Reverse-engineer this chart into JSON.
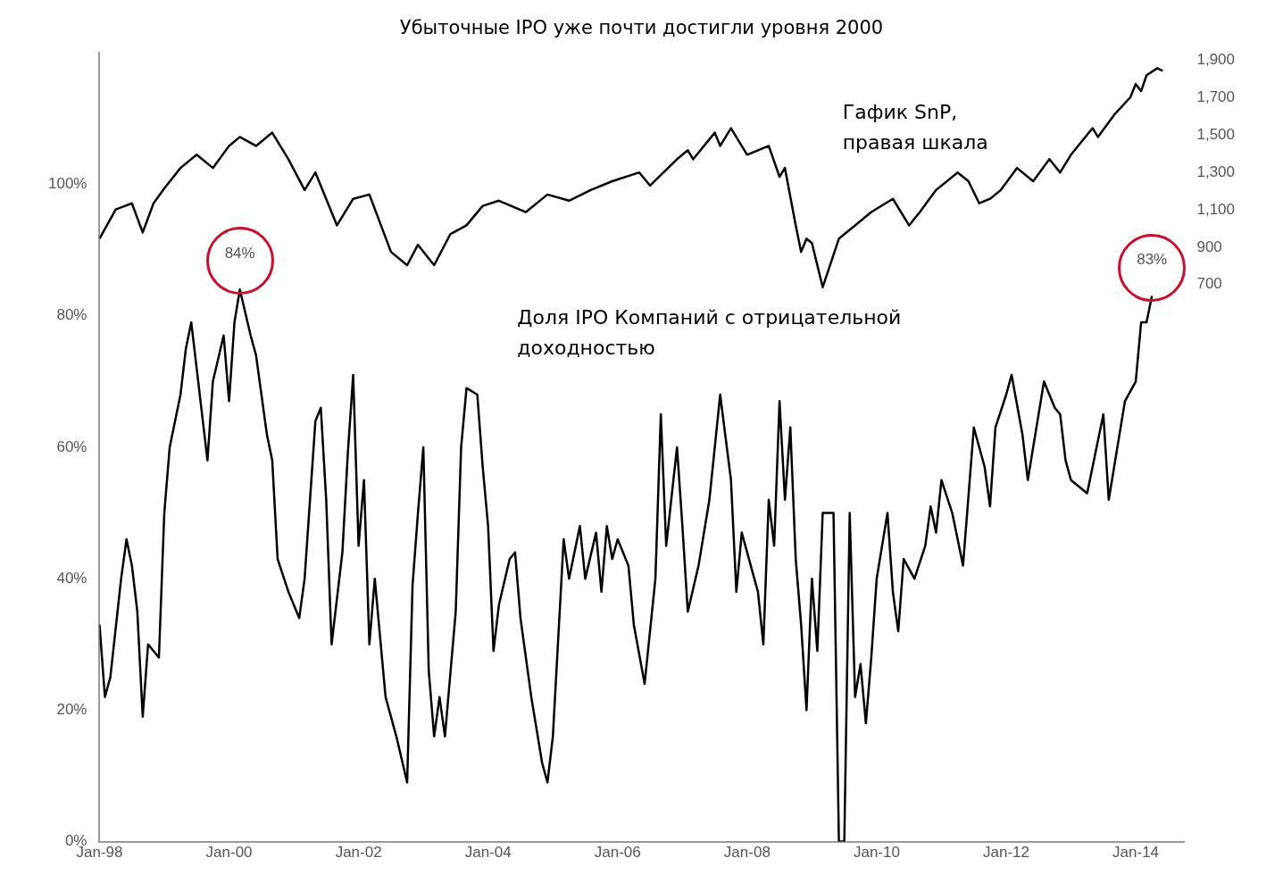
{
  "chart_data": {
    "type": "line",
    "title": "Убыточные IPO уже почти достигли уровня 2000",
    "xlim": [
      "1998-01",
      "2014-10"
    ],
    "xticks": [
      {
        "value": "1998-01",
        "label": "Jan-98"
      },
      {
        "value": "2000-01",
        "label": "Jan-00"
      },
      {
        "value": "2002-01",
        "label": "Jan-02"
      },
      {
        "value": "2004-01",
        "label": "Jan-04"
      },
      {
        "value": "2006-01",
        "label": "Jan-06"
      },
      {
        "value": "2008-01",
        "label": "Jan-08"
      },
      {
        "value": "2010-01",
        "label": "Jan-10"
      },
      {
        "value": "2012-01",
        "label": "Jan-12"
      },
      {
        "value": "2014-01",
        "label": "Jan-14"
      }
    ],
    "ylim": [
      0,
      120
    ],
    "yticks": [
      {
        "value": 0,
        "label": "0%"
      },
      {
        "value": 20,
        "label": "20%"
      },
      {
        "value": 40,
        "label": "40%"
      },
      {
        "value": 60,
        "label": "60%"
      },
      {
        "value": 80,
        "label": "80%"
      },
      {
        "value": 100,
        "label": "100%"
      }
    ],
    "y2lim": [
      -2280,
      1940
    ],
    "y2ticks": [
      {
        "value": 700,
        "label": "700"
      },
      {
        "value": 900,
        "label": "900"
      },
      {
        "value": 1100,
        "label": "1,100"
      },
      {
        "value": 1300,
        "label": "1,300"
      },
      {
        "value": 1500,
        "label": "1,500"
      },
      {
        "value": 1700,
        "label": "1,700"
      },
      {
        "value": 1900,
        "label": "1,900"
      }
    ],
    "grid": false,
    "marker": "none",
    "line_style": "solid",
    "series": [
      {
        "name": "Доля IPO Компаний с отрицательной доходностью",
        "color": "#000000",
        "x": [
          "1998-01",
          "1998-02",
          "1998-03",
          "1998-05",
          "1998-06",
          "1998-07",
          "1998-08",
          "1998-09",
          "1998-10",
          "1998-12",
          "1999-01",
          "1999-02",
          "1999-04",
          "1999-05",
          "1999-06",
          "1999-07",
          "1999-09",
          "1999-10",
          "1999-12",
          "2000-01",
          "2000-02",
          "2000-03",
          "2000-05",
          "2000-06",
          "2000-08",
          "2000-09",
          "2000-10",
          "2000-12",
          "2001-02",
          "2001-03",
          "2001-05",
          "2001-06",
          "2001-07",
          "2001-08",
          "2001-10",
          "2001-11",
          "2001-12",
          "2002-01",
          "2002-02",
          "2002-03",
          "2002-04",
          "2002-06",
          "2002-08",
          "2002-10",
          "2002-11",
          "2002-12",
          "2003-01",
          "2003-02",
          "2003-03",
          "2003-04",
          "2003-05",
          "2003-07",
          "2003-08",
          "2003-09",
          "2003-11",
          "2003-12",
          "2004-01",
          "2004-02",
          "2004-03",
          "2004-05",
          "2004-06",
          "2004-07",
          "2004-09",
          "2004-11",
          "2004-12",
          "2005-01",
          "2005-03",
          "2005-04",
          "2005-06",
          "2005-07",
          "2005-09",
          "2005-10",
          "2005-11",
          "2005-12",
          "2006-01",
          "2006-03",
          "2006-04",
          "2006-06",
          "2006-08",
          "2006-09",
          "2006-10",
          "2006-12",
          "2007-01",
          "2007-02",
          "2007-04",
          "2007-06",
          "2007-08",
          "2007-10",
          "2007-11",
          "2007-12",
          "2008-03",
          "2008-04",
          "2008-05",
          "2008-06",
          "2008-07",
          "2008-08",
          "2008-09",
          "2008-10",
          "2008-11",
          "2008-12",
          "2009-01",
          "2009-02",
          "2009-03",
          "2009-05",
          "2009-06",
          "2009-07",
          "2009-08",
          "2009-09",
          "2009-10",
          "2009-11",
          "2009-12",
          "2010-01",
          "2010-03",
          "2010-04",
          "2010-05",
          "2010-06",
          "2010-08",
          "2010-10",
          "2010-11",
          "2010-12",
          "2011-01",
          "2011-03",
          "2011-05",
          "2011-07",
          "2011-09",
          "2011-10",
          "2011-11",
          "2012-01",
          "2012-02",
          "2012-04",
          "2012-05",
          "2012-08",
          "2012-10",
          "2012-11",
          "2012-12",
          "2013-01",
          "2013-04",
          "2013-05",
          "2013-07",
          "2013-08",
          "2013-09",
          "2013-11",
          "2014-01",
          "2014-02",
          "2014-03",
          "2014-04"
        ],
        "values": [
          33,
          22,
          25,
          40,
          46,
          42,
          35,
          19,
          30,
          28,
          50,
          60,
          68,
          75,
          79,
          72,
          58,
          70,
          77,
          67,
          79,
          84,
          77,
          74,
          62,
          58,
          43,
          38,
          34,
          40,
          64,
          66,
          52,
          30,
          44,
          59,
          71,
          45,
          55,
          30,
          40,
          22,
          16,
          9,
          39,
          50,
          60,
          26,
          16,
          22,
          16,
          35,
          60,
          69,
          68,
          57,
          48,
          29,
          36,
          43,
          44,
          34,
          22,
          12,
          9,
          16,
          46,
          40,
          48,
          40,
          47,
          38,
          48,
          43,
          46,
          42,
          33,
          24,
          40,
          65,
          45,
          60,
          48,
          35,
          42,
          52,
          68,
          55,
          38,
          47,
          38,
          30,
          52,
          45,
          67,
          52,
          63,
          43,
          33,
          20,
          40,
          29,
          50,
          50,
          0,
          0,
          50,
          22,
          27,
          18,
          28,
          40,
          50,
          38,
          32,
          43,
          40,
          45,
          51,
          47,
          55,
          50,
          42,
          63,
          57,
          51,
          63,
          68,
          71,
          62,
          55,
          70,
          66,
          65,
          58,
          55,
          53,
          57,
          65,
          52,
          57,
          67,
          70,
          79,
          79,
          83
        ]
      },
      {
        "name": "Гафик SnP, правая шкала",
        "color": "#000000",
        "axis": "y2",
        "x": [
          "1998-01",
          "1998-04",
          "1998-07",
          "1998-09",
          "1998-11",
          "1999-01",
          "1999-04",
          "1999-07",
          "1999-10",
          "2000-01",
          "2000-03",
          "2000-06",
          "2000-09",
          "2000-12",
          "2001-03",
          "2001-05",
          "2001-09",
          "2001-12",
          "2002-03",
          "2002-07",
          "2002-10",
          "2002-12",
          "2003-03",
          "2003-06",
          "2003-09",
          "2003-12",
          "2004-03",
          "2004-08",
          "2004-12",
          "2005-04",
          "2005-08",
          "2005-12",
          "2006-05",
          "2006-07",
          "2006-12",
          "2007-02",
          "2007-03",
          "2007-07",
          "2007-08",
          "2007-10",
          "2008-01",
          "2008-05",
          "2008-07",
          "2008-08",
          "2008-10",
          "2008-11",
          "2008-12",
          "2009-01",
          "2009-03",
          "2009-06",
          "2009-09",
          "2009-12",
          "2010-04",
          "2010-07",
          "2010-09",
          "2010-12",
          "2011-04",
          "2011-06",
          "2011-08",
          "2011-10",
          "2011-12",
          "2012-03",
          "2012-06",
          "2012-09",
          "2012-11",
          "2013-01",
          "2013-05",
          "2013-06",
          "2013-09",
          "2013-12",
          "2014-01",
          "2014-02",
          "2014-03",
          "2014-05",
          "2014-06"
        ],
        "values": [
          946,
          1102,
          1135,
          979,
          1135,
          1215,
          1324,
          1395,
          1324,
          1442,
          1490,
          1442,
          1513,
          1371,
          1206,
          1300,
          1017,
          1159,
          1182,
          875,
          804,
          913,
          804,
          970,
          1017,
          1121,
          1149,
          1088,
          1182,
          1149,
          1206,
          1253,
          1300,
          1230,
          1371,
          1419,
          1371,
          1513,
          1442,
          1537,
          1395,
          1442,
          1277,
          1324,
          1017,
          875,
          946,
          922,
          686,
          946,
          1017,
          1088,
          1159,
          1017,
          1088,
          1206,
          1300,
          1253,
          1135,
          1159,
          1206,
          1324,
          1253,
          1371,
          1300,
          1395,
          1537,
          1490,
          1608,
          1702,
          1773,
          1735,
          1820,
          1858,
          1844
        ]
      }
    ],
    "annotations": [
      {
        "text": "84%",
        "x": "2000-03",
        "y": 84
      },
      {
        "text": "83%",
        "x": "2014-04",
        "y": 83
      }
    ]
  }
}
